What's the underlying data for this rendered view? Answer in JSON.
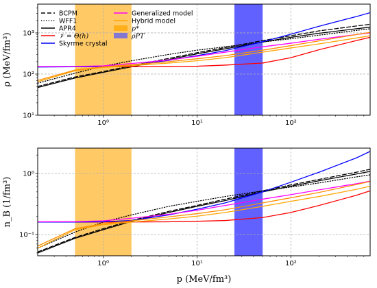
{
  "chart_data": [
    {
      "type": "line",
      "x_scale": "log",
      "y_scale": "log",
      "xlim": [
        0.2,
        700
      ],
      "ylim": [
        10,
        5000
      ],
      "ylabel": "ρ (MeV/fm³)",
      "x_ticks": [
        {
          "value": 1,
          "label": "10⁰"
        },
        {
          "value": 10,
          "label": "10¹"
        },
        {
          "value": 100,
          "label": "10²"
        }
      ],
      "y_ticks": [
        {
          "value": 10,
          "label": "10¹"
        },
        {
          "value": 100,
          "label": "10²"
        },
        {
          "value": 1000,
          "label": "10³"
        }
      ],
      "grid": true,
      "bands": [
        {
          "name": "p*",
          "x": [
            0.5,
            2.0
          ],
          "color": "#FFA500",
          "opacity": 0.6
        },
        {
          "name": "ρPT",
          "x": [
            25,
            50
          ],
          "color": "#0000FF",
          "opacity": 0.62
        }
      ],
      "series": [
        {
          "name": "BCPM",
          "color": "#000000",
          "dash": "dashed",
          "points": [
            [
              0.2,
              50
            ],
            [
              0.5,
              85
            ],
            [
              1,
              115
            ],
            [
              2,
              160
            ],
            [
              5,
              240
            ],
            [
              10,
              330
            ],
            [
              20,
              440
            ],
            [
              50,
              650
            ],
            [
              100,
              850
            ],
            [
              200,
              1120
            ],
            [
              500,
              1470
            ],
            [
              700,
              1620
            ]
          ]
        },
        {
          "name": "WFF1",
          "color": "#000000",
          "dash": "dotted",
          "points": [
            [
              0.2,
              60
            ],
            [
              0.5,
              105
            ],
            [
              1,
              155
            ],
            [
              2,
              210
            ],
            [
              5,
              300
            ],
            [
              10,
              380
            ],
            [
              20,
              460
            ],
            [
              50,
              600
            ],
            [
              100,
              720
            ],
            [
              200,
              880
            ],
            [
              500,
              1150
            ],
            [
              700,
              1260
            ]
          ]
        },
        {
          "name": "APR4",
          "color": "#000000",
          "dash": "solid",
          "points": [
            [
              0.2,
              47
            ],
            [
              0.5,
              80
            ],
            [
              1,
              110
            ],
            [
              2,
              150
            ],
            [
              5,
              225
            ],
            [
              10,
              310
            ],
            [
              20,
              410
            ],
            [
              50,
              600
            ],
            [
              100,
              780
            ],
            [
              200,
              980
            ],
            [
              500,
              1260
            ],
            [
              700,
              1380
            ]
          ]
        },
        {
          "name": "𝒱 = Θ(h)",
          "color": "#FF0000",
          "dash": "solid",
          "points": [
            [
              0.2,
              150
            ],
            [
              1,
              150
            ],
            [
              5,
              152
            ],
            [
              10,
              155
            ],
            [
              20,
              165
            ],
            [
              50,
              185
            ],
            [
              100,
              250
            ],
            [
              200,
              390
            ],
            [
              500,
              650
            ],
            [
              700,
              780
            ]
          ]
        },
        {
          "name": "Skyrme crystal",
          "color": "#0000FF",
          "dash": "solid",
          "points": [
            [
              0.2,
              148
            ],
            [
              0.5,
              150
            ],
            [
              1,
              152
            ],
            [
              2,
              165
            ],
            [
              5,
              215
            ],
            [
              10,
              280
            ],
            [
              20,
              370
            ],
            [
              50,
              610
            ],
            [
              100,
              930
            ],
            [
              200,
              1450
            ],
            [
              500,
              2500
            ],
            [
              700,
              3100
            ]
          ]
        },
        {
          "name": "Generalized model",
          "color": "#FF00FF",
          "dash": "solid",
          "points": [
            [
              0.2,
              152
            ],
            [
              0.5,
              153
            ],
            [
              1,
              158
            ],
            [
              2,
              180
            ],
            [
              5,
              220
            ],
            [
              10,
              270
            ],
            [
              20,
              340
            ],
            [
              50,
              460
            ],
            [
              100,
              560
            ],
            [
              200,
              700
            ],
            [
              500,
              910
            ],
            [
              700,
              1000
            ]
          ]
        },
        {
          "name": "Hybrid model",
          "color": "#FFA500",
          "dash": "solid",
          "points": [
            [
              0.2,
              65
            ],
            [
              0.5,
              120
            ],
            [
              1,
              145
            ],
            [
              2,
              160
            ],
            [
              5,
              185
            ],
            [
              10,
              210
            ],
            [
              20,
              250
            ],
            [
              50,
              340
            ],
            [
              100,
              430
            ],
            [
              200,
              540
            ],
            [
              500,
              750
            ],
            [
              700,
              850
            ]
          ]
        },
        {
          "name": "",
          "color": "#FF8C00",
          "dash": "solid",
          "points": [
            [
              0.2,
              70
            ],
            [
              0.5,
              125
            ],
            [
              1,
              150
            ],
            [
              2,
              168
            ],
            [
              5,
              200
            ],
            [
              10,
              235
            ],
            [
              20,
              280
            ],
            [
              50,
              380
            ],
            [
              100,
              490
            ],
            [
              200,
              640
            ],
            [
              500,
              910
            ],
            [
              700,
              1030
            ]
          ]
        }
      ]
    },
    {
      "type": "line",
      "x_scale": "log",
      "y_scale": "log",
      "xlim": [
        0.2,
        700
      ],
      "ylim": [
        0.045,
        2.6
      ],
      "xlabel": "p (MeV/fm³)",
      "ylabel": "n_B (1/fm³)",
      "x_ticks": [
        {
          "value": 1,
          "label": "10⁰"
        },
        {
          "value": 10,
          "label": "10¹"
        },
        {
          "value": 100,
          "label": "10²"
        }
      ],
      "y_ticks": [
        {
          "value": 0.1,
          "label": "10⁻¹"
        },
        {
          "value": 1,
          "label": "10⁰"
        }
      ],
      "grid": true,
      "bands": [
        {
          "name": "p*",
          "x": [
            0.5,
            2.0
          ],
          "color": "#FFA500",
          "opacity": 0.6
        },
        {
          "name": "ρPT",
          "x": [
            25,
            50
          ],
          "color": "#0000FF",
          "opacity": 0.62
        }
      ],
      "series": [
        {
          "name": "BCPM",
          "color": "#000000",
          "dash": "dashed",
          "points": [
            [
              0.2,
              0.052
            ],
            [
              0.5,
              0.09
            ],
            [
              1,
              0.125
            ],
            [
              2,
              0.17
            ],
            [
              5,
              0.24
            ],
            [
              10,
              0.3
            ],
            [
              20,
              0.38
            ],
            [
              50,
              0.52
            ],
            [
              100,
              0.65
            ],
            [
              200,
              0.8
            ],
            [
              500,
              1.05
            ],
            [
              700,
              1.17
            ]
          ]
        },
        {
          "name": "WFF1",
          "color": "#000000",
          "dash": "dotted",
          "points": [
            [
              0.2,
              0.06
            ],
            [
              0.5,
              0.11
            ],
            [
              1,
              0.16
            ],
            [
              2,
              0.21
            ],
            [
              5,
              0.29
            ],
            [
              10,
              0.35
            ],
            [
              20,
              0.42
            ],
            [
              50,
              0.52
            ],
            [
              100,
              0.6
            ],
            [
              200,
              0.7
            ],
            [
              500,
              0.88
            ],
            [
              700,
              0.95
            ]
          ]
        },
        {
          "name": "APR4",
          "color": "#000000",
          "dash": "solid",
          "points": [
            [
              0.2,
              0.05
            ],
            [
              0.5,
              0.087
            ],
            [
              1,
              0.12
            ],
            [
              2,
              0.165
            ],
            [
              5,
              0.23
            ],
            [
              10,
              0.29
            ],
            [
              20,
              0.36
            ],
            [
              50,
              0.5
            ],
            [
              100,
              0.62
            ],
            [
              200,
              0.76
            ],
            [
              500,
              0.98
            ],
            [
              700,
              1.08
            ]
          ]
        },
        {
          "name": "𝒱 = Θ(h)",
          "color": "#FF0000",
          "dash": "solid",
          "points": [
            [
              0.2,
              0.16
            ],
            [
              1,
              0.16
            ],
            [
              5,
              0.162
            ],
            [
              10,
              0.165
            ],
            [
              20,
              0.17
            ],
            [
              50,
              0.19
            ],
            [
              100,
              0.23
            ],
            [
              200,
              0.3
            ],
            [
              500,
              0.44
            ],
            [
              700,
              0.52
            ]
          ]
        },
        {
          "name": "Skyrme crystal",
          "color": "#0000FF",
          "dash": "solid",
          "points": [
            [
              0.2,
              0.16
            ],
            [
              0.5,
              0.16
            ],
            [
              1,
              0.162
            ],
            [
              2,
              0.17
            ],
            [
              5,
              0.21
            ],
            [
              10,
              0.26
            ],
            [
              20,
              0.33
            ],
            [
              50,
              0.5
            ],
            [
              100,
              0.72
            ],
            [
              200,
              1.05
            ],
            [
              500,
              1.8
            ],
            [
              700,
              2.3
            ]
          ]
        },
        {
          "name": "Generalized model",
          "color": "#FF00FF",
          "dash": "solid",
          "points": [
            [
              0.2,
              0.162
            ],
            [
              0.5,
              0.163
            ],
            [
              1,
              0.168
            ],
            [
              2,
              0.185
            ],
            [
              5,
              0.215
            ],
            [
              10,
              0.25
            ],
            [
              20,
              0.3
            ],
            [
              50,
              0.38
            ],
            [
              100,
              0.45
            ],
            [
              200,
              0.54
            ],
            [
              500,
              0.68
            ],
            [
              700,
              0.75
            ]
          ]
        },
        {
          "name": "Hybrid model",
          "color": "#FFA500",
          "dash": "solid",
          "points": [
            [
              0.2,
              0.06
            ],
            [
              0.5,
              0.12
            ],
            [
              1,
              0.145
            ],
            [
              2,
              0.16
            ],
            [
              5,
              0.18
            ],
            [
              10,
              0.2
            ],
            [
              20,
              0.23
            ],
            [
              50,
              0.29
            ],
            [
              100,
              0.35
            ],
            [
              200,
              0.42
            ],
            [
              500,
              0.55
            ],
            [
              700,
              0.62
            ]
          ]
        },
        {
          "name": "",
          "color": "#FF8C00",
          "dash": "solid",
          "points": [
            [
              0.2,
              0.065
            ],
            [
              0.5,
              0.125
            ],
            [
              1,
              0.15
            ],
            [
              2,
              0.168
            ],
            [
              5,
              0.195
            ],
            [
              10,
              0.22
            ],
            [
              20,
              0.255
            ],
            [
              50,
              0.33
            ],
            [
              100,
              0.4
            ],
            [
              200,
              0.49
            ],
            [
              500,
              0.66
            ],
            [
              700,
              0.74
            ]
          ]
        }
      ]
    }
  ],
  "legend": {
    "placement": "top-left",
    "entries": [
      {
        "label": "BCPM",
        "kind": "line",
        "color": "#000000",
        "dash": "dashed"
      },
      {
        "label": "WFF1",
        "kind": "line",
        "color": "#000000",
        "dash": "dotted"
      },
      {
        "label": "APR4",
        "kind": "line",
        "color": "#000000",
        "dash": "solid"
      },
      {
        "label": "𝒱 = Θ(h)",
        "kind": "line",
        "color": "#FF0000",
        "dash": "solid"
      },
      {
        "label": "Skyrme crystal",
        "kind": "line",
        "color": "#0000FF",
        "dash": "solid"
      },
      {
        "label": "Generalized model",
        "kind": "line",
        "color": "#FF00FF",
        "dash": "solid"
      },
      {
        "label": "Hybrid model",
        "kind": "line",
        "color": "#FFA500",
        "dash": "solid"
      },
      {
        "label": "p*",
        "kind": "patch",
        "color": "#FFA500"
      },
      {
        "label": "ρPT",
        "kind": "patch",
        "color": "#5B5BF5"
      }
    ]
  }
}
